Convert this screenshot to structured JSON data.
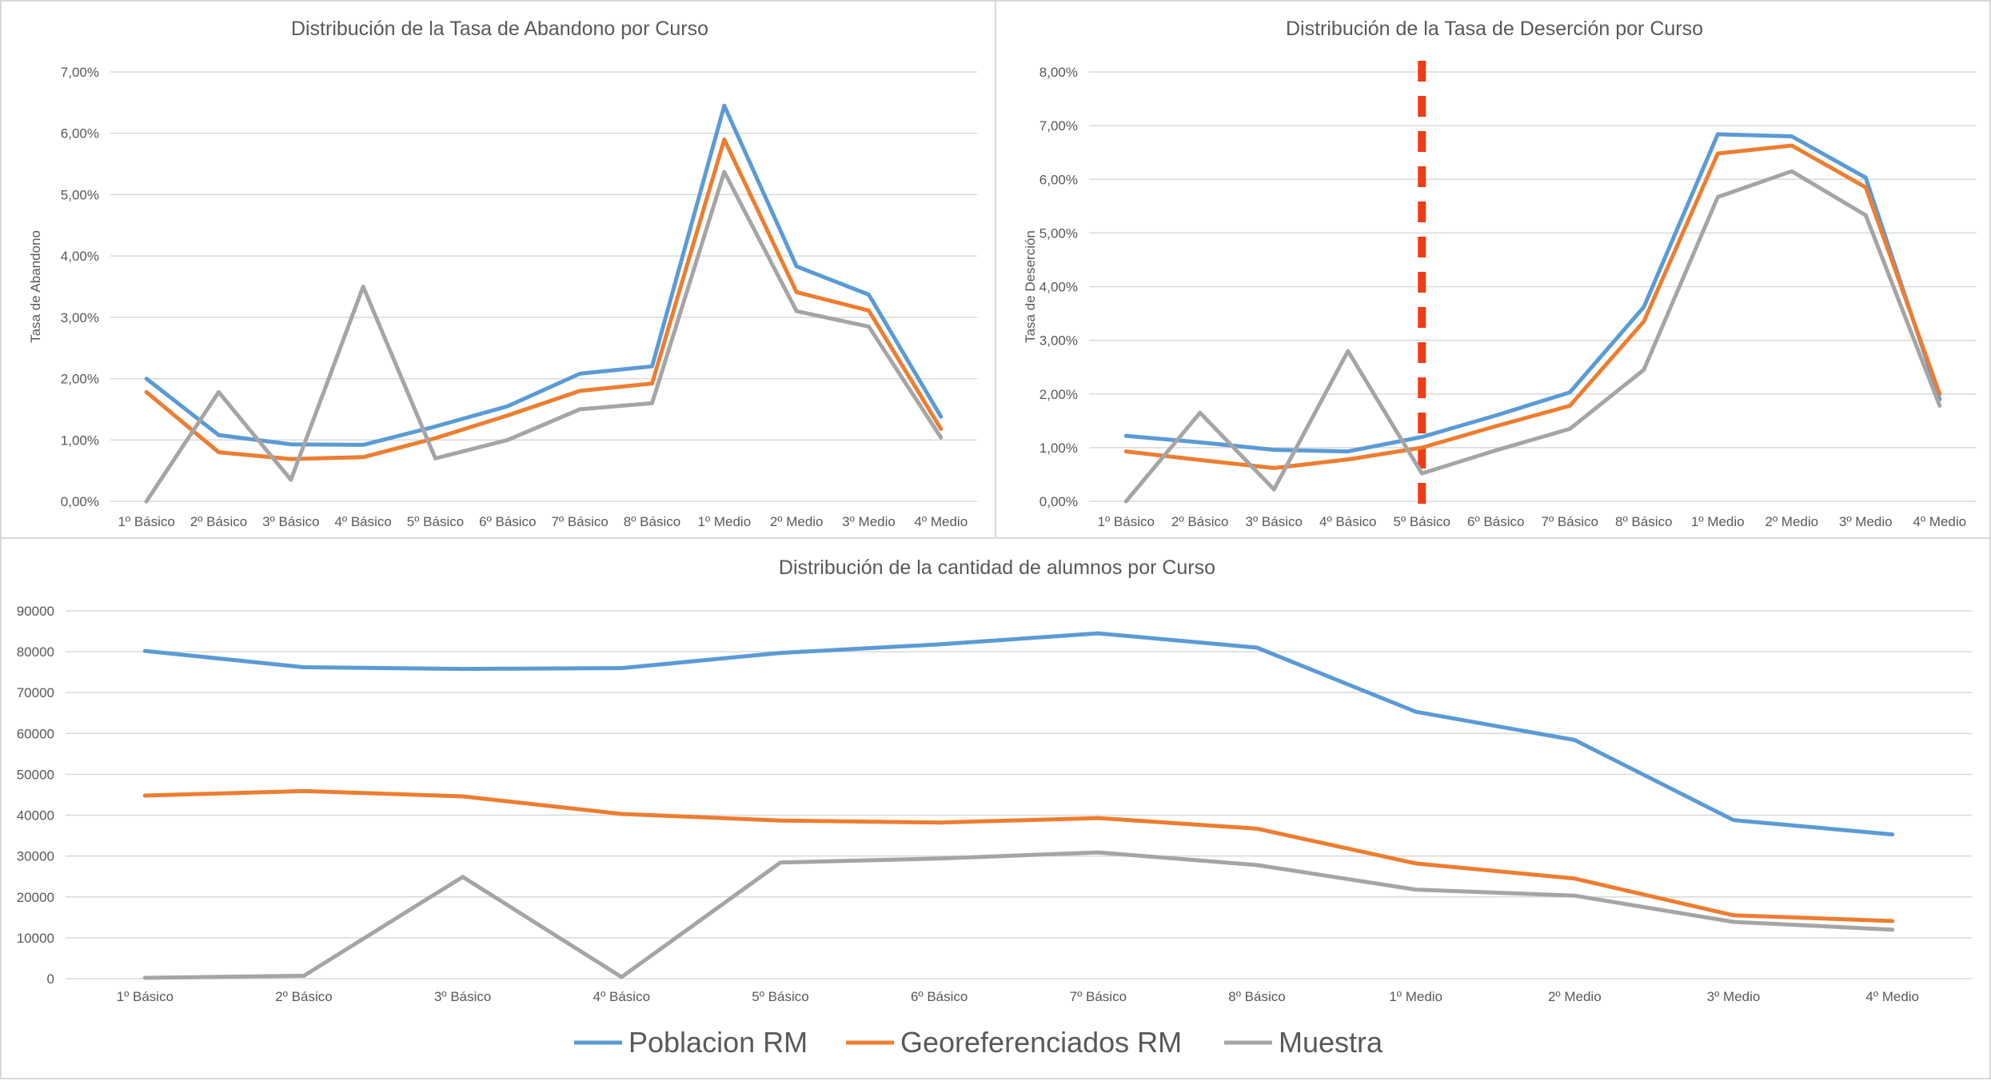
{
  "chart_data": [
    {
      "type": "line",
      "title": "Distribución de la Tasa de Abandono por Curso",
      "xlabel": "",
      "ylabel": "Tasa de Abandono",
      "categories": [
        "1º Básico",
        "2º Básico",
        "3º Básico",
        "4º Básico",
        "5º Básico",
        "6º Básico",
        "7º Básico",
        "8º Básico",
        "1º Medio",
        "2º Medio",
        "3º Medio",
        "4º Medio"
      ],
      "ylim": [
        0,
        0.07
      ],
      "yticks": [
        0,
        0.01,
        0.02,
        0.03,
        0.04,
        0.05,
        0.06,
        0.07
      ],
      "ytick_labels": [
        "0,00%",
        "1,00%",
        "2,00%",
        "3,00%",
        "4,00%",
        "5,00%",
        "6,00%",
        "7,00%"
      ],
      "grid": true,
      "series": [
        {
          "name": "Poblacion RM",
          "color": "#5B9BD5",
          "values": [
            0.02,
            0.0108,
            0.0093,
            0.0092,
            0.0122,
            0.0155,
            0.0208,
            0.022,
            0.0645,
            0.0383,
            0.0337,
            0.0138
          ]
        },
        {
          "name": "Georeferenciados RM",
          "color": "#ED7D31",
          "values": [
            0.0178,
            0.008,
            0.0069,
            0.0072,
            0.0103,
            0.014,
            0.018,
            0.0192,
            0.059,
            0.0341,
            0.0311,
            0.0118
          ]
        },
        {
          "name": "Muestra",
          "color": "#A5A5A5",
          "values": [
            0.0,
            0.0178,
            0.0035,
            0.035,
            0.007,
            0.01,
            0.015,
            0.016,
            0.0537,
            0.031,
            0.0285,
            0.0104
          ]
        }
      ]
    },
    {
      "type": "line",
      "title": "Distribución de la Tasa de Deserción por Curso",
      "xlabel": "",
      "ylabel": "Tasa de Deserción",
      "categories": [
        "1º Básico",
        "2º Básico",
        "3º Básico",
        "4º Básico",
        "5º Básico",
        "6º Básico",
        "7º Básico",
        "8º Básico",
        "1º Medio",
        "2º Medio",
        "3º Medio",
        "4º Medio"
      ],
      "ylim": [
        0,
        0.08
      ],
      "yticks": [
        0,
        0.01,
        0.02,
        0.03,
        0.04,
        0.05,
        0.06,
        0.07,
        0.08
      ],
      "ytick_labels": [
        "0,00%",
        "1,00%",
        "2,00%",
        "3,00%",
        "4,00%",
        "5,00%",
        "6,00%",
        "7,00%",
        "8,00%"
      ],
      "grid": true,
      "annotation": {
        "type": "vertical-dashed-line",
        "color": "#F03C14",
        "at_category_index": 4
      },
      "series": [
        {
          "name": "Poblacion RM",
          "color": "#5B9BD5",
          "values": [
            0.0122,
            0.011,
            0.0096,
            0.0093,
            0.012,
            0.016,
            0.0203,
            0.0362,
            0.0684,
            0.068,
            0.0603,
            0.019
          ]
        },
        {
          "name": "Georeferenciados RM",
          "color": "#ED7D31",
          "values": [
            0.0093,
            0.0077,
            0.0062,
            0.0078,
            0.01,
            0.014,
            0.0178,
            0.0335,
            0.0648,
            0.0663,
            0.0585,
            0.02
          ]
        },
        {
          "name": "Muestra",
          "color": "#A5A5A5",
          "values": [
            0.0,
            0.0165,
            0.0022,
            0.028,
            0.0052,
            0.0095,
            0.0135,
            0.0245,
            0.0567,
            0.0615,
            0.0533,
            0.0178
          ]
        }
      ]
    },
    {
      "type": "line",
      "title": "Distribución de la cantidad de alumnos por Curso",
      "xlabel": "",
      "ylabel": "",
      "categories": [
        "1º Básico",
        "2º Básico",
        "3º Básico",
        "4º Básico",
        "5º Básico",
        "6º Básico",
        "7º Básico",
        "8º Básico",
        "1º Medio",
        "2º Medio",
        "3º Medio",
        "4º Medio"
      ],
      "ylim": [
        0,
        90000
      ],
      "yticks": [
        0,
        10000,
        20000,
        30000,
        40000,
        50000,
        60000,
        70000,
        80000,
        90000
      ],
      "ytick_labels": [
        "0",
        "10000",
        "20000",
        "30000",
        "40000",
        "50000",
        "60000",
        "70000",
        "80000",
        "90000"
      ],
      "grid": true,
      "legend": "bottom",
      "series": [
        {
          "name": "Poblacion RM",
          "color": "#5B9BD5",
          "values": [
            80200,
            76200,
            75800,
            76000,
            79700,
            81800,
            84500,
            81000,
            65300,
            58400,
            38800,
            35300
          ]
        },
        {
          "name": "Georeferenciados RM",
          "color": "#ED7D31",
          "values": [
            44800,
            45900,
            44600,
            40300,
            38700,
            38200,
            39300,
            36700,
            28200,
            24500,
            15500,
            14100
          ]
        },
        {
          "name": "Muestra",
          "color": "#A5A5A5",
          "values": [
            200,
            700,
            24900,
            400,
            28400,
            29400,
            30900,
            27800,
            21800,
            20300,
            13900,
            12000
          ]
        }
      ]
    }
  ]
}
